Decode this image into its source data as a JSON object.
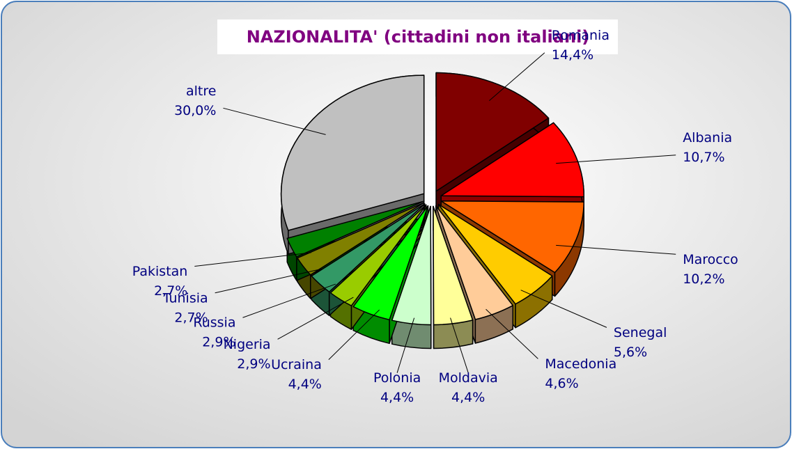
{
  "chart_data": {
    "type": "pie",
    "title": "NAZIONALITA' (cittadini non italiani)",
    "categories": [
      "Romania",
      "Albania",
      "Marocco",
      "Senegal",
      "Macedonia",
      "Moldavia",
      "Polonia",
      "Ucraina",
      "Nigeria",
      "Russia",
      "Tunisia",
      "Pakistan",
      "altre"
    ],
    "values": [
      14.4,
      10.7,
      10.2,
      5.6,
      4.6,
      4.4,
      4.4,
      4.4,
      2.9,
      2.9,
      2.7,
      2.7,
      30.0
    ],
    "value_labels": [
      "14,4%",
      "10,7%",
      "10,2%",
      "5,6%",
      "4,6%",
      "4,4%",
      "4,4%",
      "4,4%",
      "2,9%",
      "2,9%",
      "2,7%",
      "2,7%",
      "30,0%"
    ],
    "colors": [
      "#800000",
      "#ff0000",
      "#ff6600",
      "#ffcc00",
      "#ffcc99",
      "#ffff99",
      "#ccffcc",
      "#00ff00",
      "#99cc00",
      "#339966",
      "#808000",
      "#008000",
      "#c0c0c0"
    ]
  }
}
